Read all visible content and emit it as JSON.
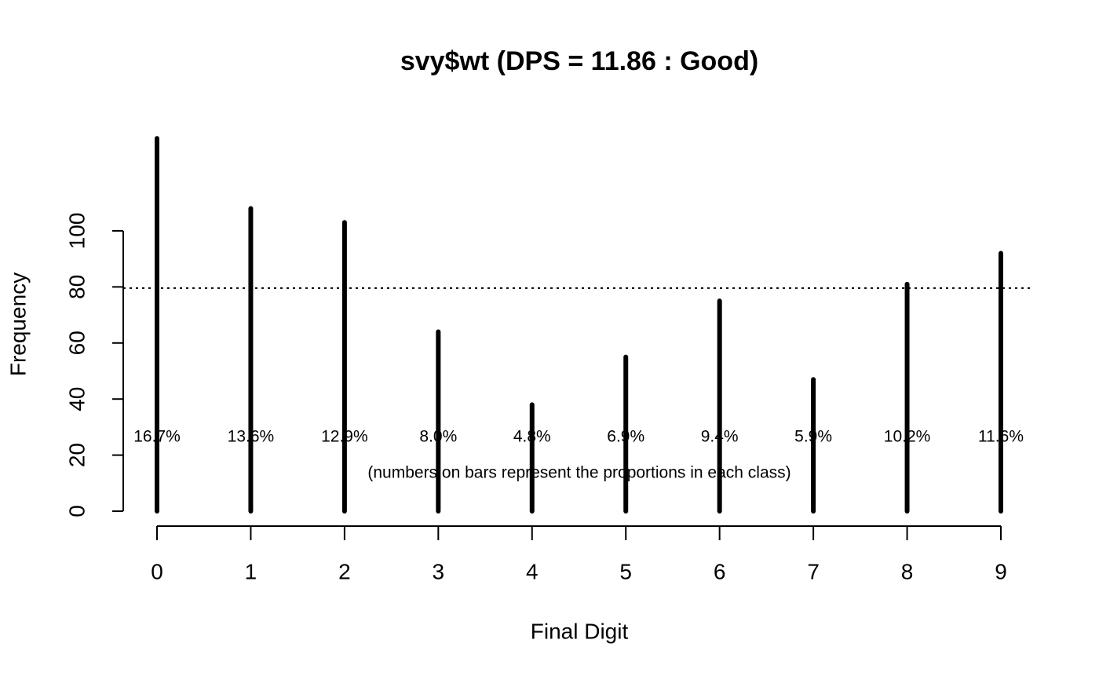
{
  "chart_data": {
    "type": "bar",
    "title": "svy$wt (DPS = 11.86 : Good)",
    "xlabel": "Final Digit",
    "ylabel": "Frequency",
    "categories": [
      "0",
      "1",
      "2",
      "3",
      "4",
      "5",
      "6",
      "7",
      "8",
      "9"
    ],
    "values": [
      133,
      108,
      103,
      64,
      38,
      55,
      75,
      47,
      81,
      92
    ],
    "bar_labels": [
      "16.7%",
      "13.6%",
      "12.9%",
      "8.0%",
      "4.8%",
      "6.9%",
      "9.4%",
      "5.9%",
      "10.2%",
      "11.6%"
    ],
    "note": "(numbers on bars represent the proportions in each class)",
    "reference_line": 79.6,
    "color": "#000000",
    "ylim": [
      0,
      140
    ],
    "yticks": [
      0,
      20,
      40,
      60,
      80,
      100
    ]
  }
}
